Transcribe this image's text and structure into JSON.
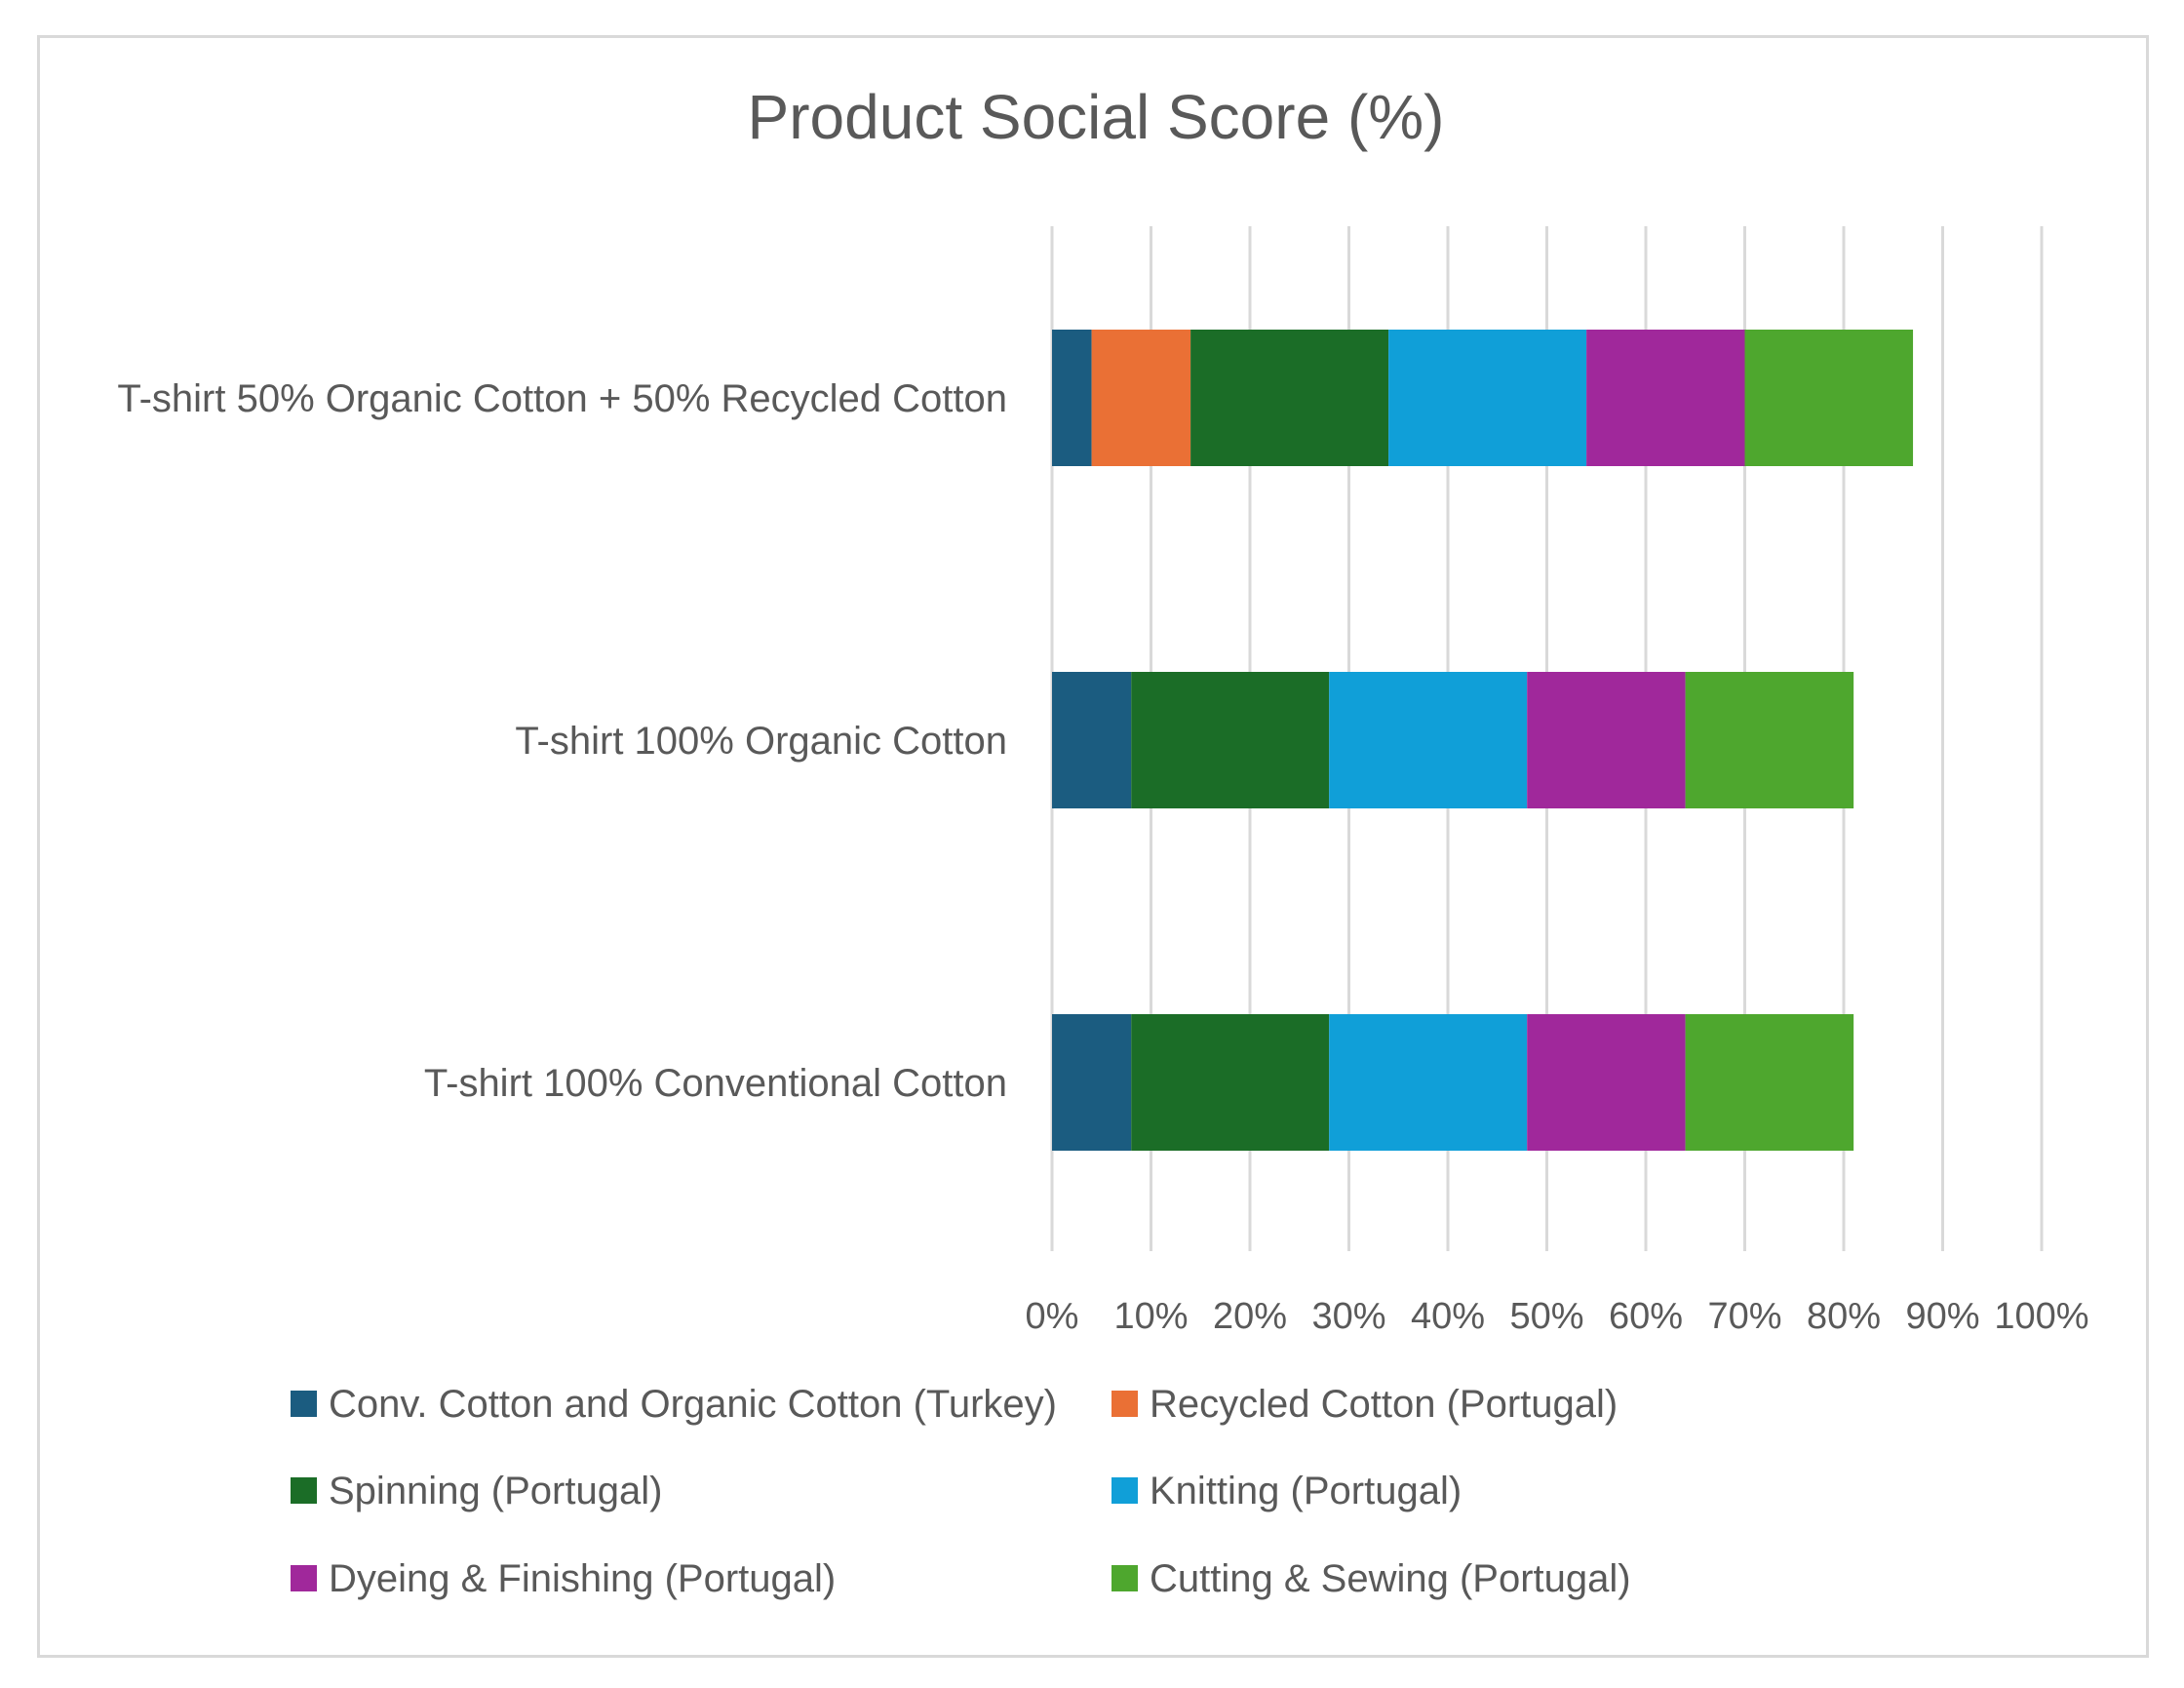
{
  "chart_data": {
    "type": "bar",
    "orientation": "horizontal",
    "stacked": true,
    "title": "Product Social Score (%)",
    "categories": [
      "T-shirt 50% Organic Cotton + 50% Recycled Cotton",
      "T-shirt 100% Organic Cotton",
      "T-shirt 100% Conventional Cotton"
    ],
    "series": [
      {
        "name": "Conv. Cotton and Organic Cotton (Turkey)",
        "color": "#1b5c80",
        "values": [
          4,
          8,
          8
        ]
      },
      {
        "name": "Recycled Cotton (Portugal)",
        "color": "#ea7035",
        "values": [
          10,
          0,
          0
        ]
      },
      {
        "name": "Spinning (Portugal)",
        "color": "#1b6d27",
        "values": [
          20,
          20,
          20
        ]
      },
      {
        "name": "Knitting (Portugal)",
        "color": "#109fd8",
        "values": [
          20,
          20,
          20
        ]
      },
      {
        "name": "Dyeing & Finishing (Portugal)",
        "color": "#a0289b",
        "values": [
          16,
          16,
          16
        ]
      },
      {
        "name": "Cutting & Sewing (Portugal)",
        "color": "#4ea72e",
        "values": [
          17,
          17,
          17
        ]
      }
    ],
    "xlim": [
      0,
      100
    ],
    "x_ticks": [
      0,
      10,
      20,
      30,
      40,
      50,
      60,
      70,
      80,
      90,
      100
    ],
    "tick_labels": [
      "0%",
      "10%",
      "20%",
      "30%",
      "40%",
      "50%",
      "60%",
      "70%",
      "80%",
      "90%",
      "100%"
    ],
    "grid": true,
    "legend_position": "bottom"
  }
}
